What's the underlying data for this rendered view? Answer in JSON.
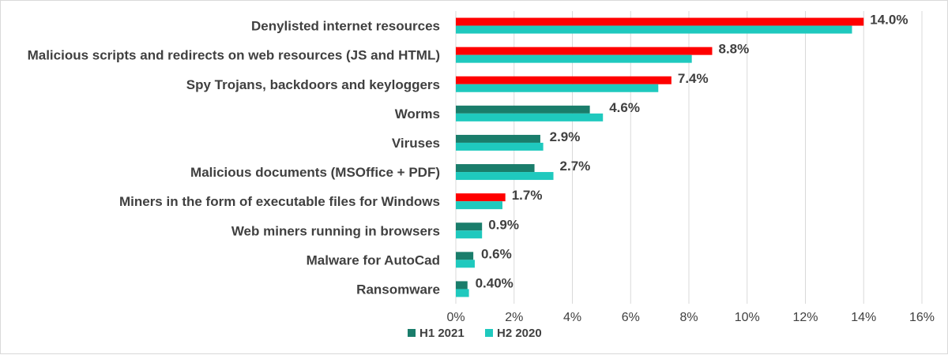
{
  "chart_data": {
    "type": "bar",
    "orientation": "horizontal",
    "title": "",
    "xlabel": "",
    "ylabel": "",
    "xlim": [
      0,
      16
    ],
    "ticks": [
      0,
      2,
      4,
      6,
      8,
      10,
      12,
      14,
      16
    ],
    "tick_labels": [
      "0%",
      "2%",
      "4%",
      "6%",
      "8%",
      "10%",
      "12%",
      "14%",
      "16%"
    ],
    "grid": true,
    "legend_position": "bottom",
    "categories": [
      "Denylisted internet resources",
      "Malicious scripts and redirects on web resources (JS and HTML)",
      "Spy Trojans, backdoors and keyloggers",
      "Worms",
      "Viruses",
      "Malicious documents (MSOffice + PDF)",
      "Miners in the form of executable files for Windows",
      "Web miners running in browsers",
      "Malware for AutoCad",
      "Ransomware"
    ],
    "series": [
      {
        "name": "H1 2021",
        "color": "#1a7d6b",
        "values": [
          14.0,
          8.8,
          7.4,
          4.6,
          2.9,
          2.7,
          1.7,
          0.9,
          0.6,
          0.4
        ],
        "labels": [
          "14.0%",
          "8.8%",
          "7.4%",
          "4.6%",
          "2.9%",
          "2.7%",
          "1.7%",
          "0.9%",
          "0.6%",
          "0.40%"
        ],
        "highlight": [
          true,
          true,
          true,
          false,
          false,
          false,
          true,
          false,
          false,
          false
        ],
        "highlight_color": "#ff0000"
      },
      {
        "name": "H2 2020",
        "color": "#1fc9be",
        "values": [
          13.6,
          8.1,
          6.95,
          5.05,
          3.0,
          3.35,
          1.6,
          0.9,
          0.65,
          0.45
        ]
      }
    ]
  }
}
